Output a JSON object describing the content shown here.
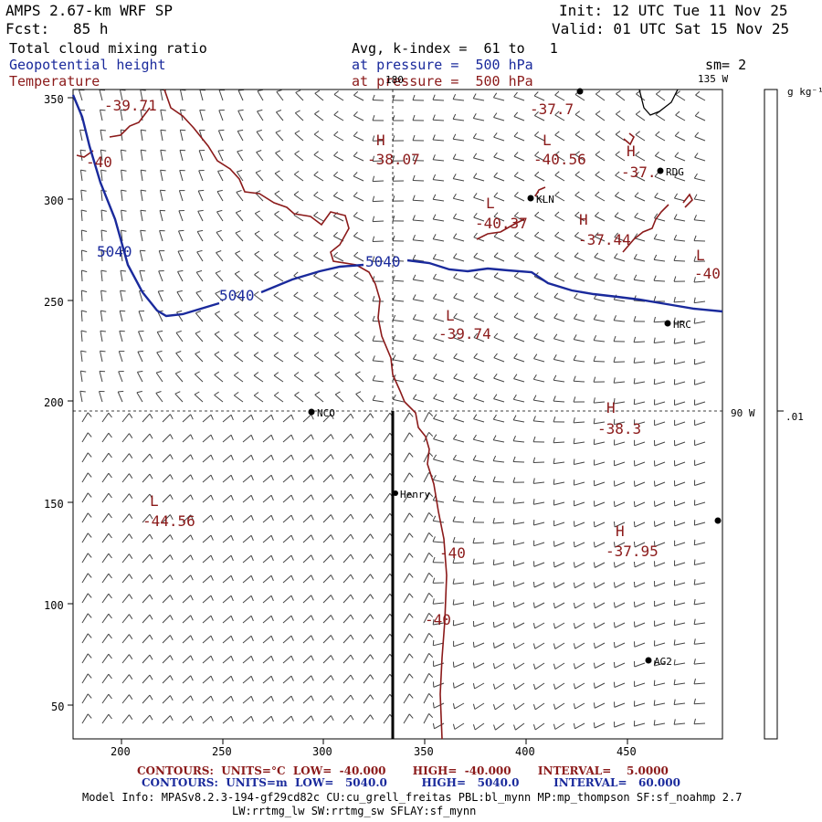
{
  "header": {
    "model": "AMPS 2.67-km WRF SP",
    "init": "Init: 12 UTC Tue 11 Nov 25",
    "fcst_label": "Fcst:",
    "fcst_value": "85 h",
    "valid": "Valid: 01 UTC Sat 15 Nov 25"
  },
  "fields": {
    "field1": "Total cloud mixing ratio",
    "field2": "Geopotential height",
    "field3": "Temperature",
    "avg": "Avg, k-index =  61 to   1",
    "pressure1": "at pressure =  500 hPa",
    "pressure2": "at pressure =  500 hPa",
    "smooth": "sm= 2"
  },
  "map": {
    "y_ticks": [
      "350",
      "300",
      "250",
      "200",
      "150",
      "100",
      "50"
    ],
    "x_ticks": [
      "200",
      "250",
      "300",
      "350",
      "400",
      "450"
    ],
    "lon_180": "180",
    "lon_135w": "135 W",
    "lon_90w": "90 W",
    "stations": [
      {
        "name": "RDG"
      },
      {
        "name": "KLN"
      },
      {
        "name": "HRC"
      },
      {
        "name": "NCO"
      },
      {
        "name": "Henry"
      },
      {
        "name": "AG2"
      }
    ],
    "extrema": [
      {
        "label": "-39.71"
      },
      {
        "label": "H"
      },
      {
        "label": "-38.07"
      },
      {
        "label": "L"
      },
      {
        "label": "-40.56"
      },
      {
        "label": "-37.7"
      },
      {
        "label": "H"
      },
      {
        "label": "-37."
      },
      {
        "label": "L"
      },
      {
        "label": "-40.37"
      },
      {
        "label": "H"
      },
      {
        "label": "-37.44"
      },
      {
        "label": "L"
      },
      {
        "label": "-40"
      },
      {
        "label": "L"
      },
      {
        "label": "-39.74"
      },
      {
        "label": "H"
      },
      {
        "label": "-38.3"
      },
      {
        "label": "L"
      },
      {
        "label": "-44.56"
      },
      {
        "label": "H"
      },
      {
        "label": "-37.95"
      },
      {
        "label": "-40"
      },
      {
        "label": "-40"
      },
      {
        "label": "-40"
      }
    ],
    "height_labels": [
      "5040",
      "5040",
      "5040"
    ]
  },
  "colorbar": {
    "units": "g kg⁻¹",
    "tick": ".01"
  },
  "footer": {
    "line1": "CONTOURS:  UNITS=°C  LOW=  -40.000       HIGH=  -40.000       INTERVAL=    5.0000",
    "line2": "CONTOURS:  UNITS=m  LOW=   5040.0         HIGH=   5040.0         INTERVAL=   60.000",
    "info1": "Model Info: MPASv8.2.3-194-gf29cd82c CU:cu_grell_freitas PBL:bl_mynn MP:mp_thompson SF:sf_noahmp 2.7",
    "info2": "LW:rrtmg_lw SW:rrtmg_sw SFLAY:sf_mynn"
  },
  "colors": {
    "temperature": "#8b1a1a",
    "height": "#1a2a9c"
  }
}
